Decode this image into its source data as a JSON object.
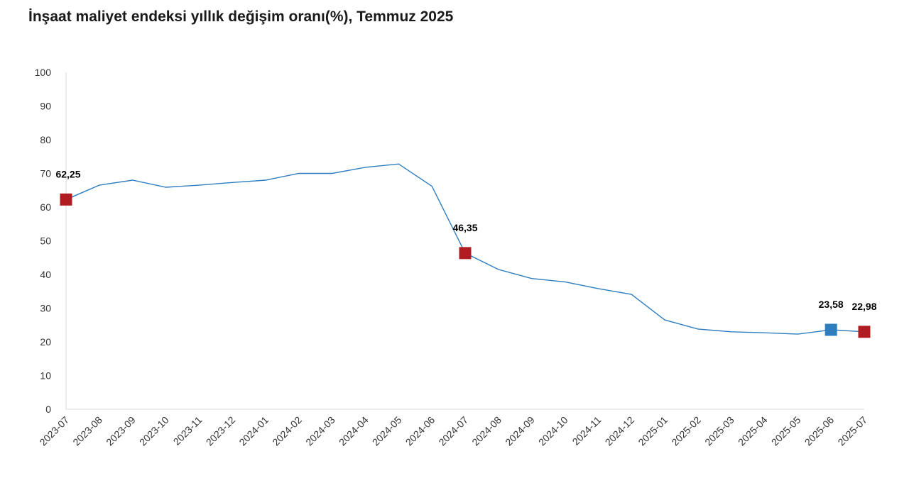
{
  "chart_data": {
    "type": "line",
    "title": "İnşaat maliyet endeksi yıllık değişim oranı(%), Temmuz 2025",
    "xlabel": "",
    "ylabel": "",
    "ylim": [
      0,
      100
    ],
    "yticks": [
      "0",
      "10",
      "20",
      "30",
      "40",
      "50",
      "60",
      "70",
      "80",
      "90",
      "100"
    ],
    "grid": false,
    "categories": [
      "2023-07",
      "2023-08",
      "2023-09",
      "2023-10",
      "2023-11",
      "2023-12",
      "2024-01",
      "2024-02",
      "2024-03",
      "2024-04",
      "2024-05",
      "2024-06",
      "2024-07",
      "2024-08",
      "2024-09",
      "2024-10",
      "2024-11",
      "2024-12",
      "2025-01",
      "2025-02",
      "2025-03",
      "2025-04",
      "2025-05",
      "2025-06",
      "2025-07"
    ],
    "values": [
      62.25,
      66.5,
      68.0,
      65.9,
      66.5,
      67.3,
      68.0,
      70.0,
      70.0,
      71.8,
      72.8,
      66.2,
      46.35,
      41.5,
      38.8,
      37.8,
      35.8,
      34.1,
      26.5,
      23.8,
      23.0,
      22.7,
      22.3,
      23.58,
      22.98
    ],
    "line_color": "#2e7dbf",
    "markers": [
      {
        "index": 0,
        "label": "62,25",
        "color": "#b01c22"
      },
      {
        "index": 12,
        "label": "46,35",
        "color": "#b01c22"
      },
      {
        "index": 23,
        "label": "23,58",
        "color": "#2e7dbf"
      },
      {
        "index": 24,
        "label": "22,98",
        "color": "#b01c22"
      }
    ]
  }
}
